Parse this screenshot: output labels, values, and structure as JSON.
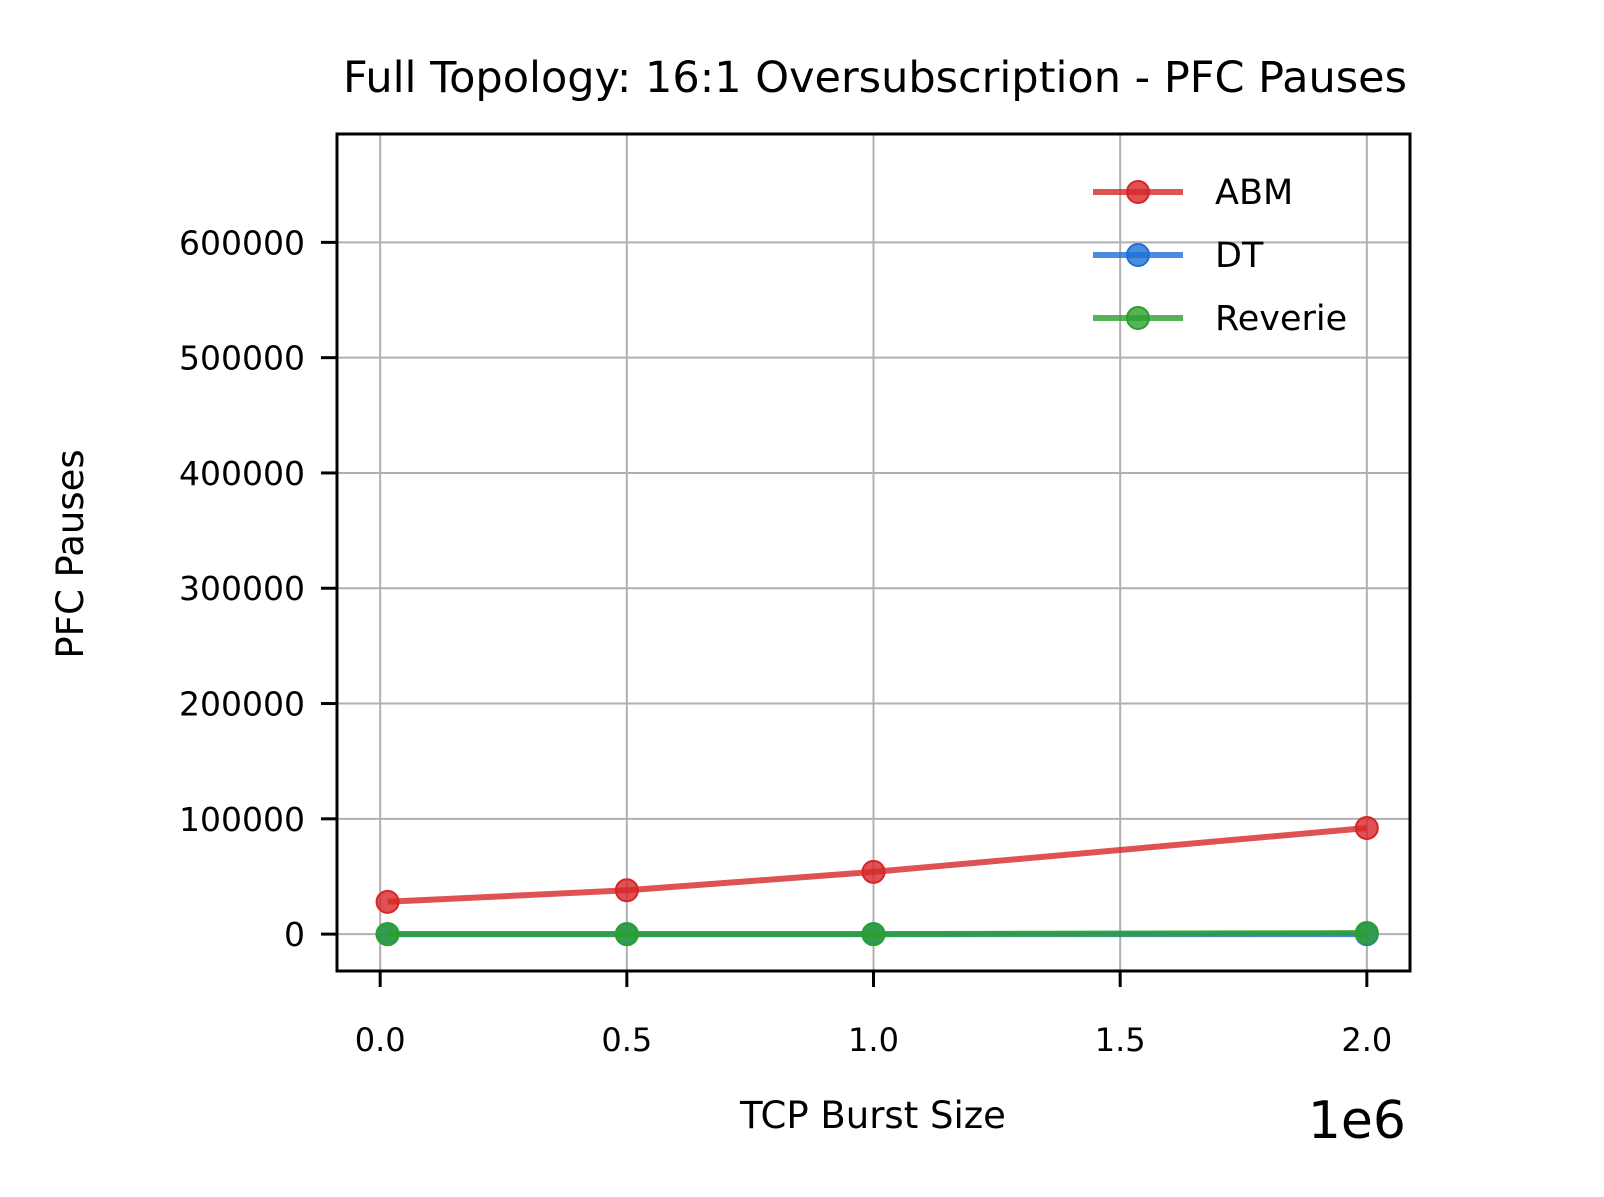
{
  "chart_data": {
    "type": "line",
    "title": "Full Topology: 16:1 Oversubscription - PFC Pauses",
    "xlabel": "TCP Burst Size",
    "ylabel": "PFC Pauses",
    "x_offset_label": "1e6",
    "x": [
      15000,
      500000,
      1000000,
      2000000
    ],
    "xlim": [
      -87500,
      2087500
    ],
    "ylim": [
      -32000,
      694000
    ],
    "x_ticks": [
      0,
      500000,
      1000000,
      1500000,
      2000000
    ],
    "x_tick_labels": [
      "0.0",
      "0.5",
      "1.0",
      "1.5",
      "2.0"
    ],
    "y_ticks": [
      0,
      100000,
      200000,
      300000,
      400000,
      500000,
      600000
    ],
    "y_tick_labels": [
      "0",
      "100000",
      "200000",
      "300000",
      "400000",
      "500000",
      "600000"
    ],
    "grid": true,
    "legend_position": "top-right",
    "series": [
      {
        "name": "ABM",
        "color": "#d62728",
        "values": [
          28000,
          38000,
          54000,
          92000
        ]
      },
      {
        "name": "DT",
        "color": "#1f6fd6",
        "values": [
          0,
          0,
          0,
          0
        ]
      },
      {
        "name": "Reverie",
        "color": "#2ca02c",
        "values": [
          0,
          0,
          0,
          1000
        ]
      }
    ]
  }
}
